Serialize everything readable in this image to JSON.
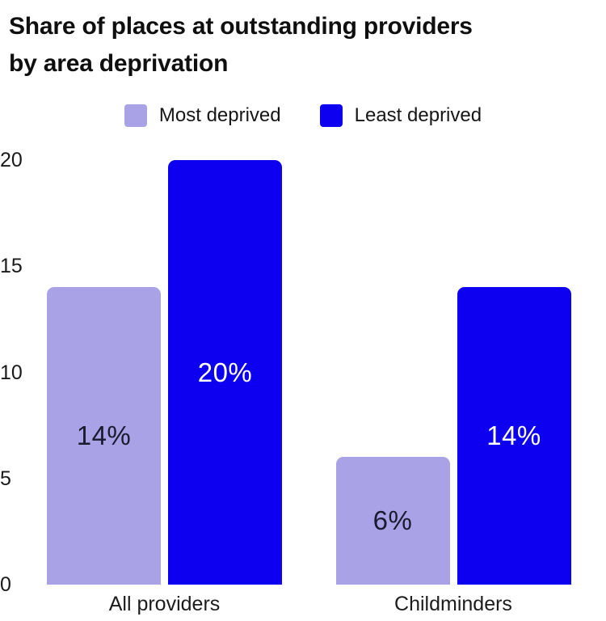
{
  "title": {
    "line1": "Share of places at outstanding providers",
    "line2": "by area deprivation"
  },
  "legend": {
    "items": [
      {
        "label": "Most deprived",
        "color": "#a9a2e6"
      },
      {
        "label": "Least deprived",
        "color": "#0d00f0"
      }
    ]
  },
  "colors": {
    "most_deprived": "#a9a2e6",
    "least_deprived": "#0d00f0",
    "dark_label": "#1b1b2f",
    "light_label": "#ffffff",
    "text": "#0f0f0f"
  },
  "chart_data": {
    "type": "bar",
    "title": "Share of places at outstanding providers by area deprivation",
    "categories": [
      "All providers",
      "Childminders"
    ],
    "series": [
      {
        "name": "Most deprived",
        "color": "#a9a2e6",
        "values": [
          14,
          6
        ],
        "data_labels": [
          "14%",
          "6%"
        ],
        "label_color": "#1b1b2f"
      },
      {
        "name": "Least deprived",
        "color": "#0d00f0",
        "values": [
          20,
          14
        ],
        "data_labels": [
          "20%",
          "14%"
        ],
        "label_color": "#ffffff"
      }
    ],
    "xlabel": "",
    "ylabel": "",
    "ylim": [
      0,
      20
    ],
    "yticks": [
      0,
      5,
      10,
      15,
      20
    ],
    "grid": false,
    "legend_position": "top",
    "bar_corner": "rounded-top"
  }
}
